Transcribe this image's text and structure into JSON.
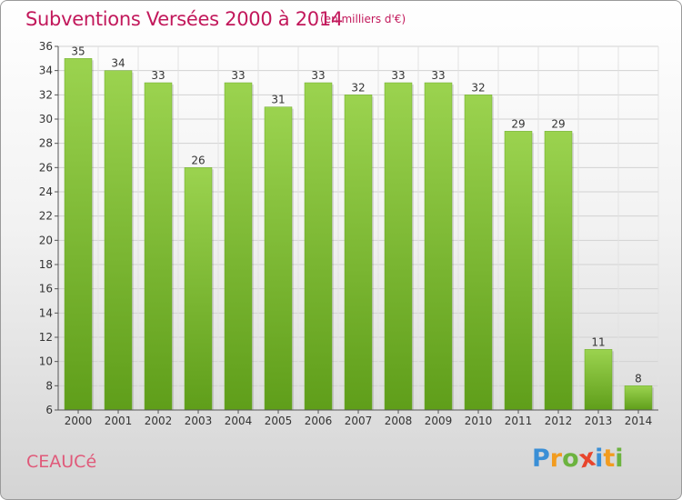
{
  "header": {
    "title": "Subventions Versées 2000 à 2014",
    "subtitle": "(en milliers d'€)"
  },
  "footer": {
    "commune": "CEAUCé",
    "logo_letters": [
      "P",
      "r",
      "o",
      "x",
      "i",
      "t",
      "i"
    ],
    "logo_colors": [
      "#3a8fd6",
      "#f29c1f",
      "#6cb33f",
      "#e8452c",
      "#3a8fd6",
      "#f29c1f",
      "#6cb33f"
    ]
  },
  "chart_data": {
    "type": "bar",
    "title": "Subventions Versées 2000 à 2014",
    "subtitle": "(en milliers d'€)",
    "categories": [
      "2000",
      "2001",
      "2002",
      "2003",
      "2004",
      "2005",
      "2006",
      "2007",
      "2008",
      "2009",
      "2010",
      "2011",
      "2012",
      "2013",
      "2014"
    ],
    "values": [
      35,
      34,
      33,
      26,
      33,
      31,
      33,
      32,
      33,
      33,
      32,
      29,
      29,
      11,
      8
    ],
    "ylim": [
      6,
      36
    ],
    "yticks": [
      6,
      8,
      10,
      12,
      14,
      16,
      18,
      20,
      22,
      24,
      26,
      28,
      30,
      32,
      34,
      36
    ],
    "grid": true,
    "bar_color_top": "#9bd34f",
    "bar_color_bottom": "#5f9e1a"
  }
}
